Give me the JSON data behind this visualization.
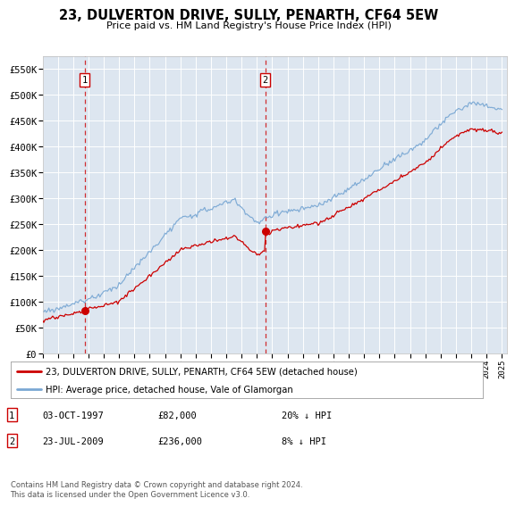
{
  "title": "23, DULVERTON DRIVE, SULLY, PENARTH, CF64 5EW",
  "subtitle": "Price paid vs. HM Land Registry's House Price Index (HPI)",
  "ylim": [
    0,
    575000
  ],
  "yticks": [
    0,
    50000,
    100000,
    150000,
    200000,
    250000,
    300000,
    350000,
    400000,
    450000,
    500000,
    550000
  ],
  "ytick_labels": [
    "£0",
    "£50K",
    "£100K",
    "£150K",
    "£200K",
    "£250K",
    "£300K",
    "£350K",
    "£400K",
    "£450K",
    "£500K",
    "£550K"
  ],
  "purchase1_year": 1997.75,
  "purchase1_price": 82000,
  "purchase2_year": 2009.55,
  "purchase2_price": 236000,
  "line1_color": "#cc0000",
  "line2_color": "#7aa8d4",
  "vline_color": "#cc0000",
  "bg_color": "#dde6f0",
  "grid_color": "#ffffff",
  "legend1_label": "23, DULVERTON DRIVE, SULLY, PENARTH, CF64 5EW (detached house)",
  "legend2_label": "HPI: Average price, detached house, Vale of Glamorgan",
  "footer": "Contains HM Land Registry data © Crown copyright and database right 2024.\nThis data is licensed under the Open Government Licence v3.0.",
  "table_rows": [
    {
      "num": "1",
      "date": "03-OCT-1997",
      "price": "£82,000",
      "pct": "20% ↓ HPI"
    },
    {
      "num": "2",
      "date": "23-JUL-2009",
      "price": "£236,000",
      "pct": "8% ↓ HPI"
    }
  ]
}
